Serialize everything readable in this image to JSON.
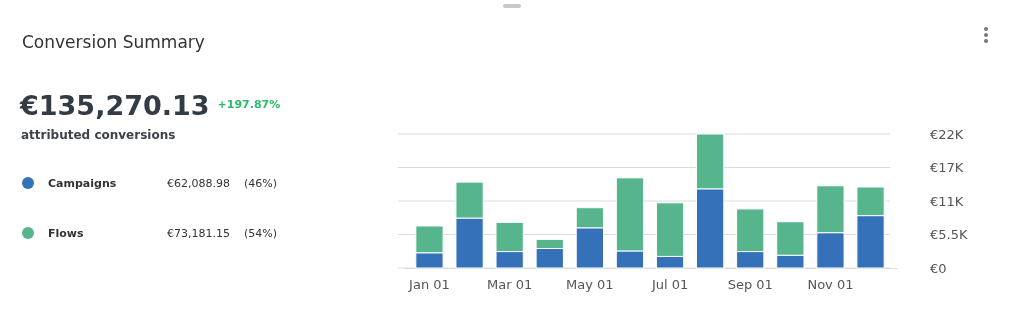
{
  "chart_data": {
    "type": "bar",
    "stacked": true,
    "title": "Conversion Summary",
    "subtitle": "€135,270.13",
    "annotations": [
      "+197.87%",
      "attributed conversions",
      "€62,088.98",
      "(46%)",
      "€73,181.15",
      "(54%)"
    ],
    "categories": [
      "Jan 01",
      null,
      "Mar 01",
      null,
      "May 01",
      null,
      "Jul 01",
      null,
      "Sep 01",
      null,
      "Nov 01",
      null
    ],
    "series": [
      {
        "name": "Campaigns",
        "color": "#3471b9",
        "values": [
          2500,
          8200,
          2700,
          3200,
          6600,
          2800,
          1900,
          13000,
          2700,
          2100,
          5800,
          8600
        ]
      },
      {
        "name": "Flows",
        "color": "#57b58e",
        "values": [
          4400,
          5900,
          4800,
          1500,
          3300,
          12000,
          8800,
          9000,
          7000,
          5500,
          7700,
          4700
        ]
      }
    ],
    "ylim": [
      0,
      22000
    ],
    "yticks": [
      {
        "value": 0,
        "label": "€0"
      },
      {
        "value": 5500,
        "label": "€5.5K"
      },
      {
        "value": 11000,
        "label": "€11K"
      },
      {
        "value": 16500,
        "label": "€17K"
      },
      {
        "value": 22000,
        "label": "€22K"
      }
    ],
    "grid": "y",
    "legend": "left"
  }
}
